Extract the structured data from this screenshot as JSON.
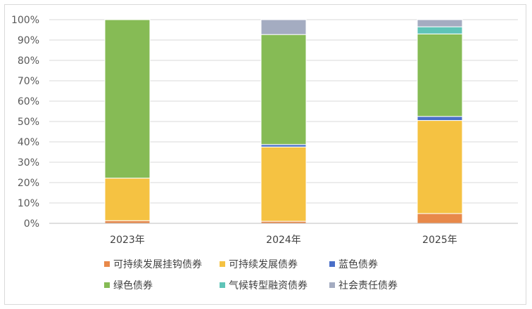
{
  "chart_data": {
    "type": "bar",
    "stacked": true,
    "percent": true,
    "categories": [
      "2023年",
      "2024年",
      "2025年"
    ],
    "y_ticks": [
      "0%",
      "10%",
      "20%",
      "30%",
      "40%",
      "50%",
      "60%",
      "70%",
      "80%",
      "90%",
      "100%"
    ],
    "ylim": [
      0,
      100
    ],
    "grid": true,
    "legend_position": "bottom",
    "series": [
      {
        "name": "可持续发展挂钩债券",
        "color": "#e8894a",
        "values": [
          1.3,
          1.0,
          4.8
        ]
      },
      {
        "name": "可持续发展债券",
        "color": "#f5c242",
        "values": [
          20.9,
          36.5,
          45.7
        ]
      },
      {
        "name": "蓝色债券",
        "color": "#4a6fc8",
        "values": [
          0,
          1.2,
          2.0
        ]
      },
      {
        "name": "绿色债券",
        "color": "#86bb55",
        "values": [
          77.8,
          54.0,
          40.5
        ]
      },
      {
        "name": "气候转型融资债券",
        "color": "#5fc4b8",
        "values": [
          0,
          0,
          3.5
        ]
      },
      {
        "name": "社会责任债券",
        "color": "#a4acc1",
        "values": [
          0,
          7.3,
          3.5
        ]
      }
    ]
  }
}
